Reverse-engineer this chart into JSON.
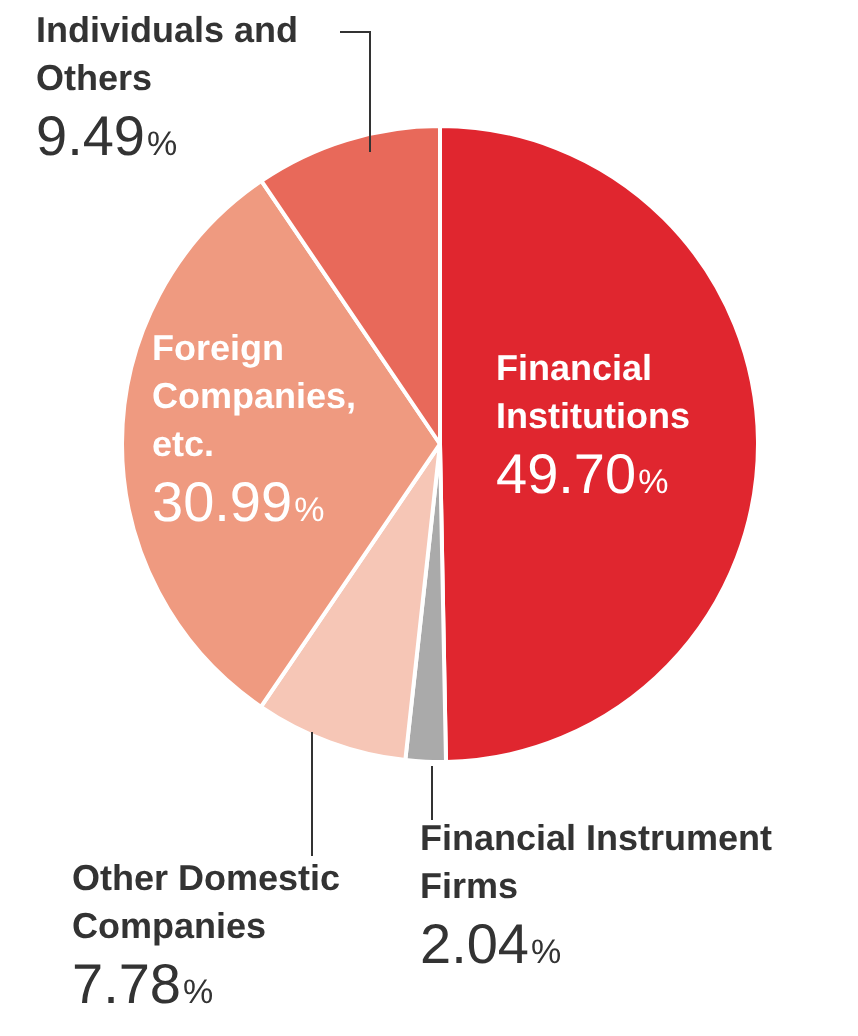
{
  "chart_data": {
    "type": "pie",
    "categories": [
      "Financial Institutions",
      "Financial Instrument Firms",
      "Other Domestic Companies",
      "Foreign Companies, etc.",
      "Individuals and Others"
    ],
    "values": [
      49.7,
      2.04,
      7.78,
      30.99,
      9.49
    ],
    "colors": [
      "#e0262f",
      "#aaaaaa",
      "#f6c6b6",
      "#ef9a80",
      "#e8695a"
    ],
    "value_labels": [
      "49.70%",
      "2.04%",
      "7.78%",
      "30.99%",
      "9.49%"
    ],
    "legend": false
  }
}
